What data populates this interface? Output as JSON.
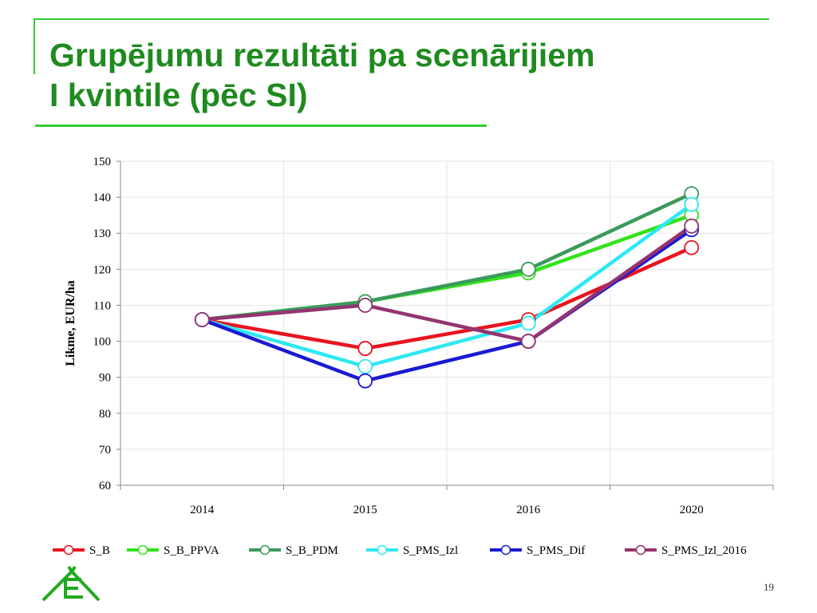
{
  "slide": {
    "title_line1": "Grupējumu rezultāti pa scenārijiem",
    "title_line2": "I kvintile (pēc SI)",
    "page_number": "19",
    "accent_color": "#33cc33",
    "title_color": "#1f8a1f"
  },
  "chart_data": {
    "type": "line",
    "title": "",
    "xlabel": "",
    "ylabel": "Likme, EUR/ha",
    "categories": [
      "2014",
      "2015",
      "2016",
      "2020"
    ],
    "ylim": [
      60,
      150
    ],
    "yticks": [
      60,
      70,
      80,
      90,
      100,
      110,
      120,
      130,
      140,
      150
    ],
    "grid": true,
    "legend_position": "bottom",
    "series": [
      {
        "name": "S_B",
        "color": "#e8141e",
        "values": [
          106,
          98,
          106,
          126
        ]
      },
      {
        "name": "S_B_PPVA",
        "color": "#33e21a",
        "values": [
          106,
          111,
          119,
          135
        ]
      },
      {
        "name": "S_B_PDM",
        "color": "#3a9a5c",
        "values": [
          106,
          111,
          120,
          141
        ]
      },
      {
        "name": "S_PMS_Izl",
        "color": "#2ee8f2",
        "values": [
          106,
          93,
          105,
          138
        ]
      },
      {
        "name": "S_PMS_Dif",
        "color": "#1a1ad2",
        "values": [
          106,
          89,
          100,
          131
        ]
      },
      {
        "name": "S_PMS_Izl_2016",
        "color": "#943470",
        "values": [
          106,
          110,
          100,
          132
        ]
      }
    ]
  }
}
